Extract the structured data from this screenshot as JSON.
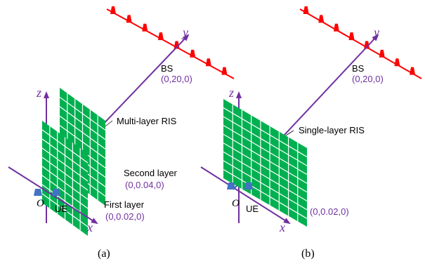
{
  "colors": {
    "axis": "#7030a0",
    "panel_fill": "#00b050",
    "panel_grid": "#ffffff",
    "bs_array": "#ff0000",
    "ue": "#4472c4"
  },
  "left": {
    "caption": "(a)",
    "axis_z": "z",
    "axis_y": "y",
    "axis_x": "x",
    "origin": "O",
    "bs_label": "BS",
    "bs_coord": "(0,20,0)",
    "ris_label": "Multi-layer RIS",
    "second_label": "Second layer",
    "second_coord": "(0,0.04,0)",
    "first_label": "First layer",
    "first_coord": "(0,0.02,0)",
    "ue_label": "UE"
  },
  "right": {
    "caption": "(b)",
    "axis_z": "z",
    "axis_y": "y",
    "axis_x": "x",
    "origin": "O",
    "bs_label": "BS",
    "bs_coord": "(0,20,0)",
    "ris_label": "Single-layer RIS",
    "coord": "(0,0.02,0)",
    "ue_label": "UE"
  }
}
